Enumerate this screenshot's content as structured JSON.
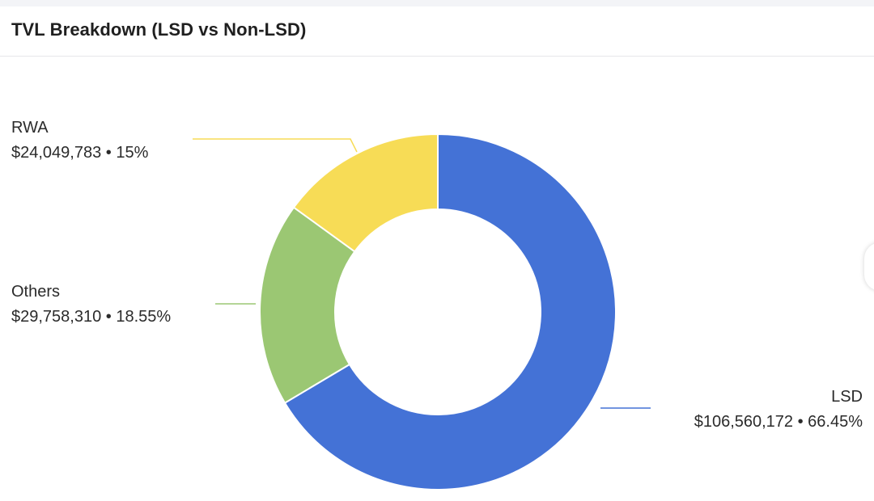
{
  "card": {
    "title": "TVL Breakdown (LSD vs Non-LSD)"
  },
  "chart_data": {
    "type": "pie",
    "variant": "donut",
    "title": "TVL Breakdown (LSD vs Non-LSD)",
    "slices": [
      {
        "name": "LSD",
        "value": 106560172,
        "value_label": "$106,560,172",
        "percent": 66.45,
        "percent_label": "66.45%",
        "color": "#4472d6"
      },
      {
        "name": "Others",
        "value": 29758310,
        "value_label": "$29,758,310",
        "percent": 18.55,
        "percent_label": "18.55%",
        "color": "#9bc773"
      },
      {
        "name": "RWA",
        "value": 24049783,
        "value_label": "$24,049,783",
        "percent": 15,
        "percent_label": "15%",
        "color": "#f7dc56"
      }
    ],
    "separator": "•",
    "legend": "none"
  }
}
